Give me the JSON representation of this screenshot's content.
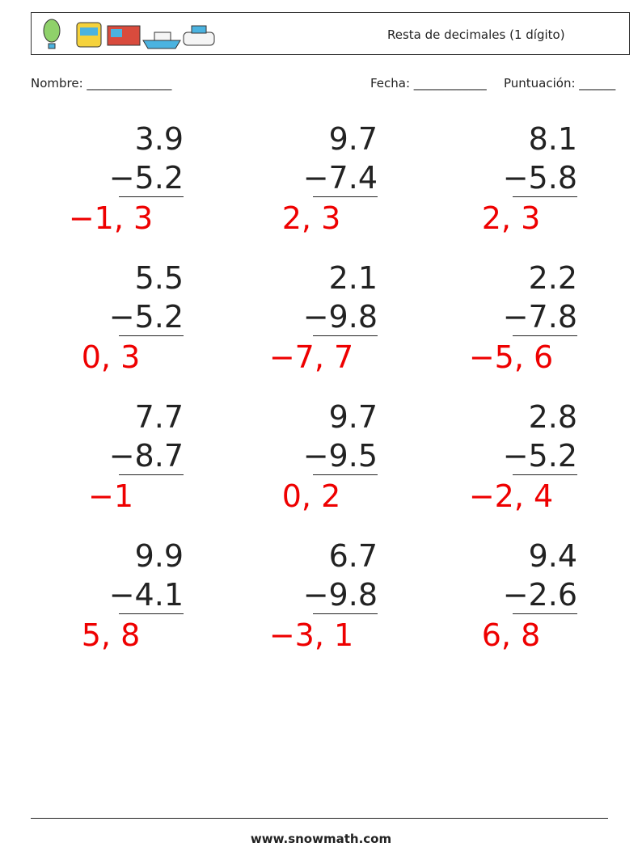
{
  "header": {
    "title": "Resta de decimales (1 dígito)"
  },
  "fields": {
    "name": "Nombre: ______________",
    "date": "Fecha: ____________",
    "score": "Puntuación: ______"
  },
  "problems": [
    {
      "top": "3.9",
      "bottom": "−5.2",
      "answer": "−1, 3"
    },
    {
      "top": "9.7",
      "bottom": "−7.4",
      "answer": "2, 3"
    },
    {
      "top": "8.1",
      "bottom": "−5.8",
      "answer": "2, 3"
    },
    {
      "top": "5.5",
      "bottom": "−5.2",
      "answer": "0, 3"
    },
    {
      "top": "2.1",
      "bottom": "−9.8",
      "answer": "−7, 7"
    },
    {
      "top": "2.2",
      "bottom": "−7.8",
      "answer": "−5, 6"
    },
    {
      "top": "7.7",
      "bottom": "−8.7",
      "answer": "−1"
    },
    {
      "top": "9.7",
      "bottom": "−9.5",
      "answer": "0, 2"
    },
    {
      "top": "2.8",
      "bottom": "−5.2",
      "answer": "−2, 4"
    },
    {
      "top": "9.9",
      "bottom": "−4.1",
      "answer": "5, 8"
    },
    {
      "top": "6.7",
      "bottom": "−9.8",
      "answer": "−3, 1"
    },
    {
      "top": "9.4",
      "bottom": "−2.6",
      "answer": "6, 8"
    }
  ],
  "footer": {
    "site": "www.snowmath.com"
  }
}
